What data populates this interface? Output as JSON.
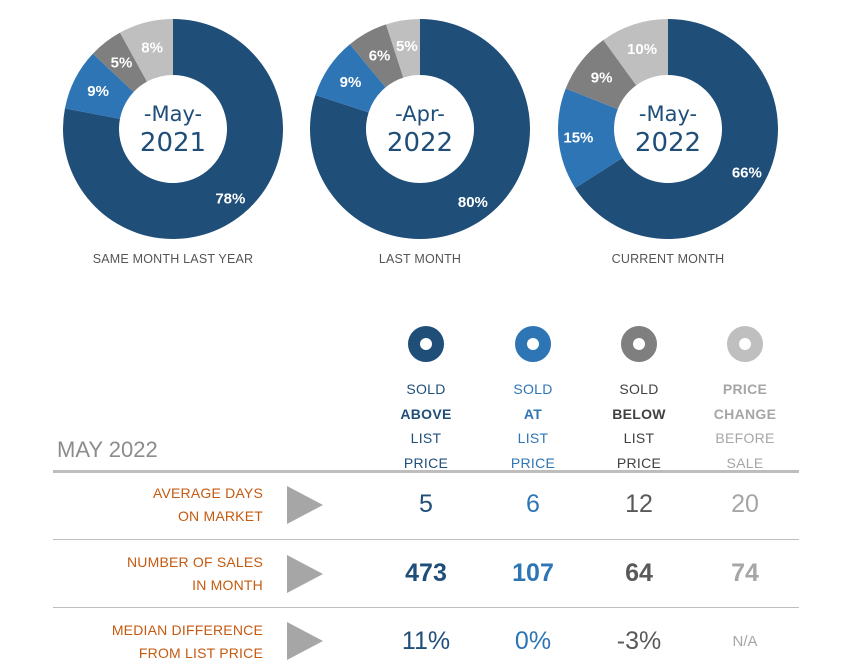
{
  "chart_data": [
    {
      "type": "pie",
      "caption": "SAME MONTH LAST YEAR",
      "center_month": "-May-",
      "center_year": "2021",
      "values": [
        78,
        9,
        5,
        8
      ],
      "labels": [
        "78%",
        "9%",
        "5%",
        "8%"
      ],
      "colors": [
        "#1f4e79",
        "#2e75b6",
        "#7f7f7f",
        "#bfbfbf"
      ]
    },
    {
      "type": "pie",
      "caption": "LAST MONTH",
      "center_month": "-Apr-",
      "center_year": "2022",
      "values": [
        80,
        9,
        6,
        5
      ],
      "labels": [
        "80%",
        "9%",
        "6%",
        "5%"
      ],
      "colors": [
        "#1f4e79",
        "#2e75b6",
        "#7f7f7f",
        "#bfbfbf"
      ]
    },
    {
      "type": "pie",
      "caption": "CURRENT MONTH",
      "center_month": "-May-",
      "center_year": "2022",
      "values": [
        66,
        15,
        9,
        10
      ],
      "labels": [
        "66%",
        "15%",
        "9%",
        "10%"
      ],
      "colors": [
        "#1f4e79",
        "#2e75b6",
        "#7f7f7f",
        "#bfbfbf"
      ]
    }
  ],
  "table": {
    "title": "MAY 2022",
    "columns": [
      {
        "lines": [
          "SOLD",
          "ABOVE",
          "LIST",
          "PRICE"
        ],
        "bold_index": [
          1
        ],
        "color": "#1f4e79",
        "text_color": "#1f4e79",
        "bold_color": "#1f4e79"
      },
      {
        "lines": [
          "SOLD",
          "AT",
          "LIST",
          "PRICE"
        ],
        "bold_index": [
          1
        ],
        "color": "#2e75b6",
        "text_color": "#2e75b6",
        "bold_color": "#2e75b6"
      },
      {
        "lines": [
          "SOLD",
          "BELOW",
          "LIST",
          "PRICE"
        ],
        "bold_index": [
          1
        ],
        "color": "#7f7f7f",
        "text_color": "#404040",
        "bold_color": "#404040"
      },
      {
        "lines": [
          "PRICE",
          "CHANGE",
          "BEFORE",
          "SALE"
        ],
        "bold_index": [
          0,
          1
        ],
        "color": "#bfbfbf",
        "text_color": "#a6a6a6",
        "bold_color": "#a6a6a6"
      }
    ],
    "rows": [
      {
        "label": [
          "AVERAGE DAYS",
          "ON MARKET"
        ],
        "values": [
          "5",
          "6",
          "12",
          "20"
        ],
        "bold": false
      },
      {
        "label": [
          "NUMBER OF SALES",
          "IN MONTH"
        ],
        "values": [
          "473",
          "107",
          "64",
          "74"
        ],
        "bold": true
      },
      {
        "label": [
          "MEDIAN DIFFERENCE",
          "FROM LIST PRICE"
        ],
        "values": [
          "11%",
          "0%",
          "-3%",
          "N/A"
        ],
        "bold": false
      }
    ],
    "value_colors": [
      "#1f4e79",
      "#2e75b6",
      "#595959",
      "#a6a6a6"
    ]
  }
}
